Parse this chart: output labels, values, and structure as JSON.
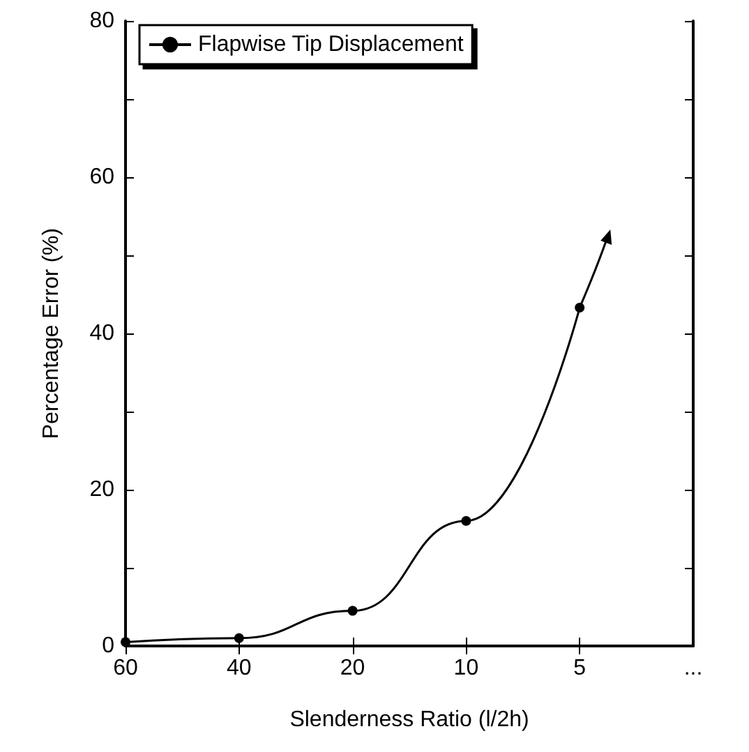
{
  "chart_data": {
    "type": "line",
    "xlabel": "Slenderness Ratio (l/2h)",
    "ylabel": "Percentage Error (%)",
    "categories": [
      "60",
      "40",
      "20",
      "10",
      "5",
      "..."
    ],
    "series": [
      {
        "name": "Flapwise Tip Displacement",
        "color": "#000000",
        "values": [
          0.5,
          1.0,
          4.5,
          16,
          43.3,
          null
        ]
      }
    ],
    "ylim": [
      0,
      80
    ],
    "yticks": [
      0,
      {
        "value": 10,
        "label": null
      },
      20,
      {
        "value": 30,
        "label": null
      },
      40,
      {
        "value": 50,
        "label": null
      },
      60,
      {
        "value": 70,
        "label": null
      },
      80
    ],
    "legend": "top left",
    "marker": "circle",
    "line_style": "solid",
    "grid": false
  }
}
